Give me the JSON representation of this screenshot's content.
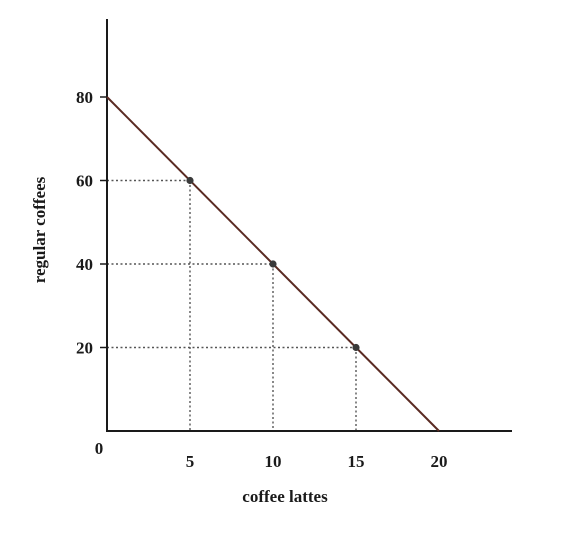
{
  "chart_data": {
    "type": "line",
    "title": "",
    "xlabel": "coffee lattes",
    "ylabel": "regular coffees",
    "xlim": [
      0,
      24.5
    ],
    "ylim": [
      0,
      98
    ],
    "origin_label": "0",
    "xticks": [
      5,
      10,
      15,
      20
    ],
    "yticks": [
      20,
      40,
      60,
      80
    ],
    "grid": false,
    "line": {
      "x": [
        0,
        20
      ],
      "y": [
        80,
        0
      ]
    },
    "points": [
      {
        "x": 5,
        "y": 60
      },
      {
        "x": 10,
        "y": 40
      },
      {
        "x": 15,
        "y": 20
      }
    ],
    "guides": "dotted",
    "colors": {
      "axis": "#1a1a1a",
      "line": "#5a2a22",
      "point": "#3a3a3a",
      "guide": "#555555"
    }
  }
}
